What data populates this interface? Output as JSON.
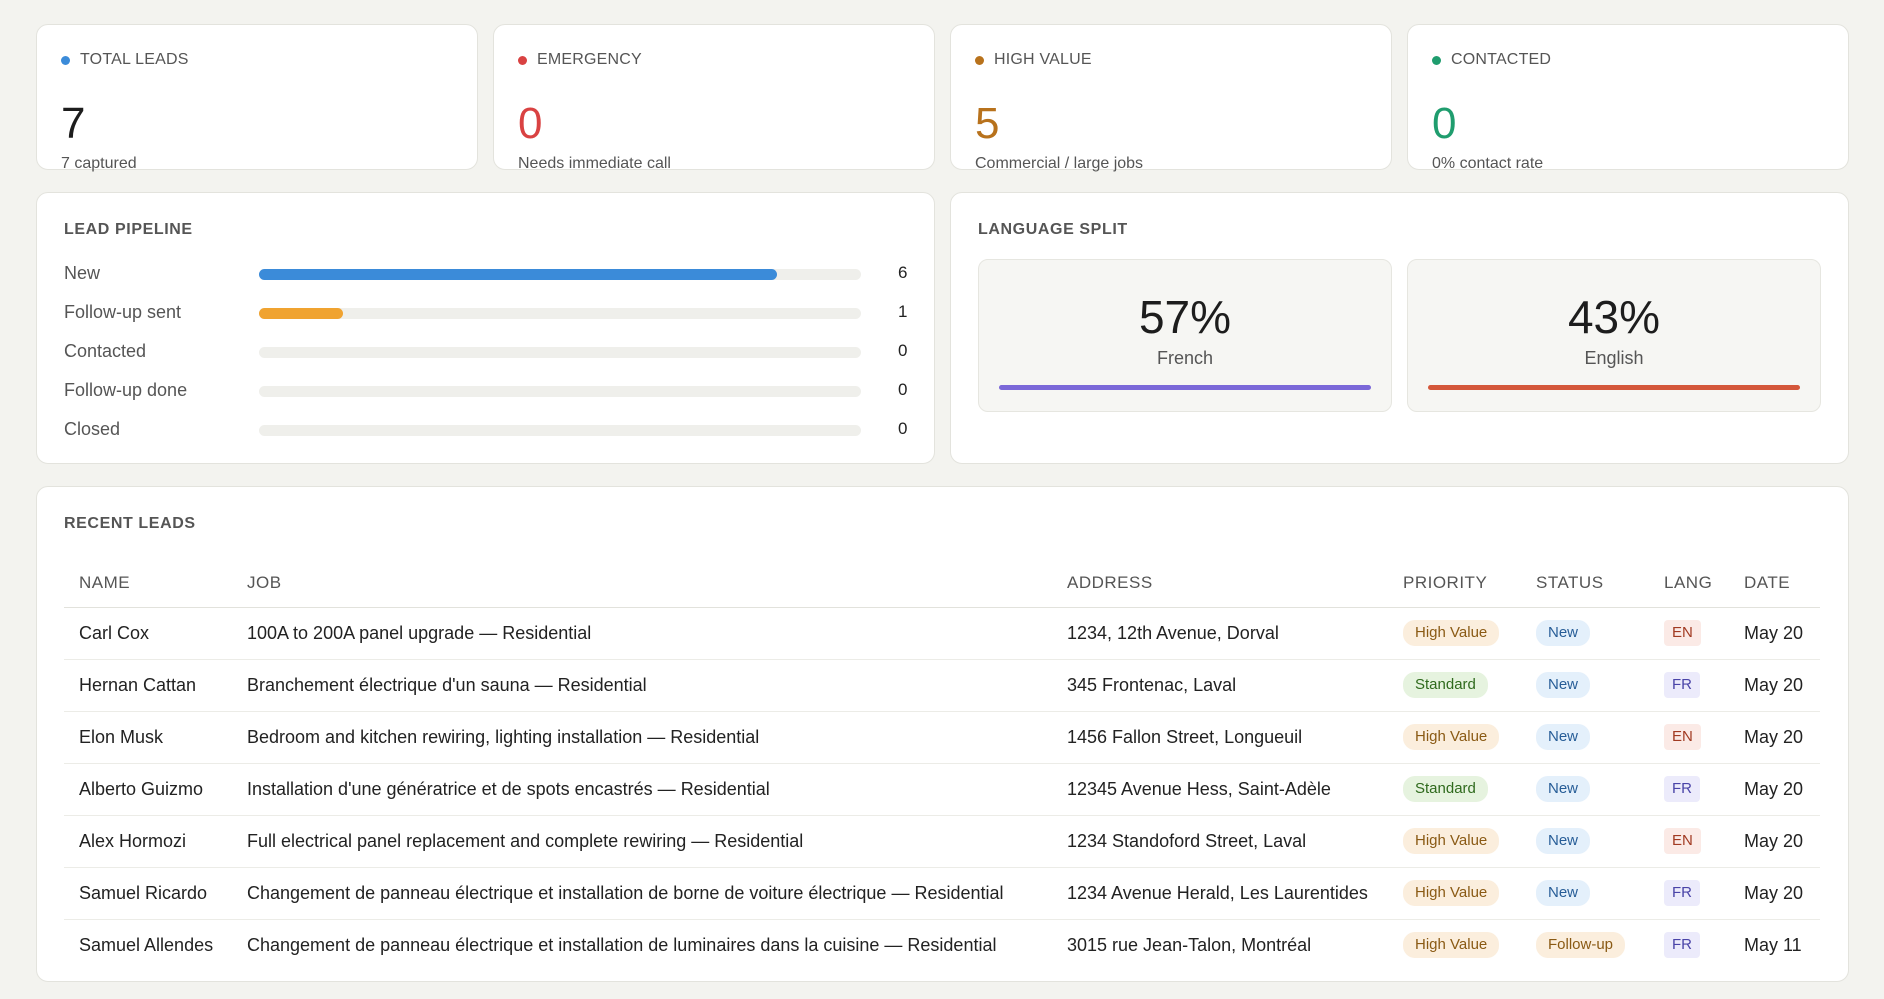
{
  "stats": [
    {
      "label": "TOTAL LEADS",
      "value": "7",
      "sub": "7 captured",
      "dot_color": "#3b8bd9",
      "value_color": "#1d1d1d"
    },
    {
      "label": "EMERGENCY",
      "value": "0",
      "sub": "Needs immediate call",
      "dot_color": "#d94242",
      "value_color": "#d94242"
    },
    {
      "label": "HIGH VALUE",
      "value": "5",
      "sub": "Commercial / large jobs",
      "dot_color": "#b8721c",
      "value_color": "#b8721c"
    },
    {
      "label": "CONTACTED",
      "value": "0",
      "sub": "0% contact rate",
      "dot_color": "#1f9d6e",
      "value_color": "#1f9d6e"
    }
  ],
  "pipeline": {
    "title": "LEAD PIPELINE",
    "rows": [
      {
        "label": "New",
        "count": "6",
        "fraction": 0.86,
        "color": "#3b8bd9"
      },
      {
        "label": "Follow-up sent",
        "count": "1",
        "fraction": 0.14,
        "color": "#f0a330"
      },
      {
        "label": "Contacted",
        "count": "0",
        "fraction": 0,
        "color": "#cccccc"
      },
      {
        "label": "Follow-up done",
        "count": "0",
        "fraction": 0,
        "color": "#cccccc"
      },
      {
        "label": "Closed",
        "count": "0",
        "fraction": 0,
        "color": "#cccccc"
      }
    ]
  },
  "language": {
    "title": "LANGUAGE SPLIT",
    "items": [
      {
        "pct": "57%",
        "name": "French",
        "color": "#7b68d8"
      },
      {
        "pct": "43%",
        "name": "English",
        "color": "#d4573a"
      }
    ]
  },
  "recent": {
    "title": "RECENT LEADS",
    "headers": [
      "NAME",
      "JOB",
      "ADDRESS",
      "PRIORITY",
      "STATUS",
      "LANG",
      "DATE"
    ],
    "rows": [
      {
        "name": "Carl Cox",
        "job": "100A to 200A panel upgrade — Residential",
        "address": "1234, 12th Avenue, Dorval",
        "priority": "High Value",
        "status": "New",
        "lang": "EN",
        "date": "May 20"
      },
      {
        "name": "Hernan Cattan",
        "job": "Branchement électrique d'un sauna — Residential",
        "address": "345 Frontenac, Laval",
        "priority": "Standard",
        "status": "New",
        "lang": "FR",
        "date": "May 20"
      },
      {
        "name": "Elon Musk",
        "job": "Bedroom and kitchen rewiring, lighting installation — Residential",
        "address": "1456 Fallon Street, Longueuil",
        "priority": "High Value",
        "status": "New",
        "lang": "EN",
        "date": "May 20"
      },
      {
        "name": "Alberto Guizmo",
        "job": "Installation d'une génératrice et de spots encastrés — Residential",
        "address": "12345 Avenue Hess, Saint-Adèle",
        "priority": "Standard",
        "status": "New",
        "lang": "FR",
        "date": "May 20"
      },
      {
        "name": "Alex Hormozi",
        "job": "Full electrical panel replacement and complete rewiring — Residential",
        "address": "1234 Standoford Street, Laval",
        "priority": "High Value",
        "status": "New",
        "lang": "EN",
        "date": "May 20"
      },
      {
        "name": "Samuel Ricardo",
        "job": "Changement de panneau électrique et installation de borne de voiture électrique — Residential",
        "address": "1234 Avenue Herald, Les Laurentides",
        "priority": "High Value",
        "status": "New",
        "lang": "FR",
        "date": "May 20"
      },
      {
        "name": "Samuel Allendes",
        "job": "Changement de panneau électrique et installation de luminaires dans la cuisine — Residential",
        "address": "3015 rue Jean-Talon, Montréal",
        "priority": "High Value",
        "status": "Follow-up",
        "lang": "FR",
        "date": "May 11"
      }
    ]
  }
}
